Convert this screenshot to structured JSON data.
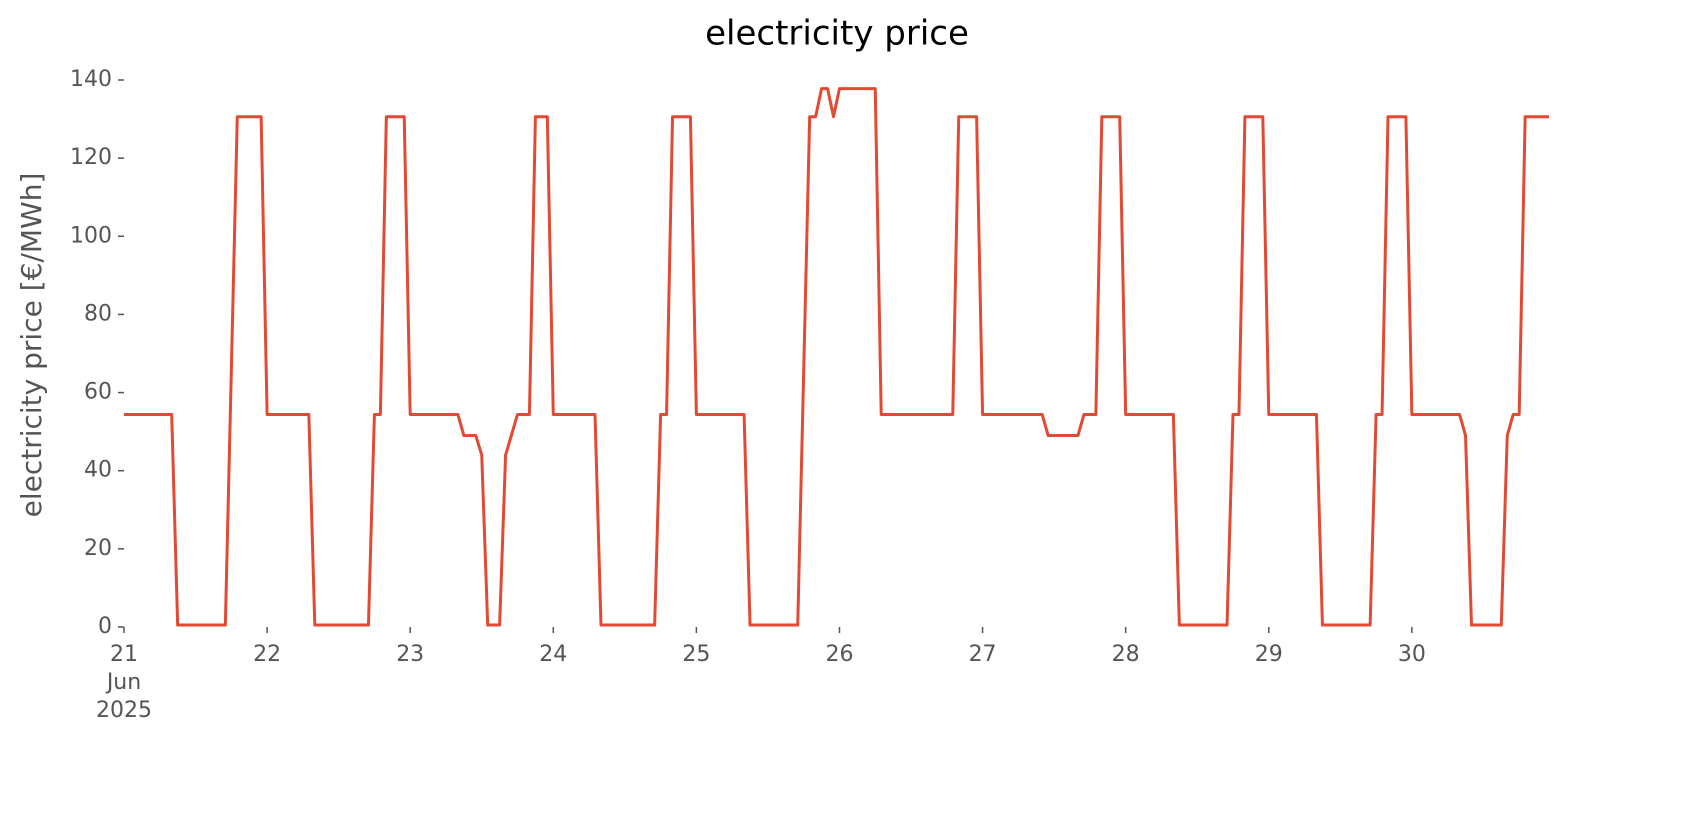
{
  "chart_data": {
    "type": "line",
    "title": "electricity price",
    "ylabel": "electricity price [€/MWh]",
    "xlim": [
      "2025-06-21 00:00",
      "2025-06-30 23:00"
    ],
    "xticks": [
      {
        "value": "2025-06-21 00:00",
        "label": "21\nJun\n2025"
      },
      {
        "value": "2025-06-22 00:00",
        "label": "22"
      },
      {
        "value": "2025-06-23 00:00",
        "label": "23"
      },
      {
        "value": "2025-06-24 00:00",
        "label": "24"
      },
      {
        "value": "2025-06-25 00:00",
        "label": "25"
      },
      {
        "value": "2025-06-26 00:00",
        "label": "26"
      },
      {
        "value": "2025-06-27 00:00",
        "label": "27"
      },
      {
        "value": "2025-06-28 00:00",
        "label": "28"
      },
      {
        "value": "2025-06-29 00:00",
        "label": "29"
      },
      {
        "value": "2025-06-30 00:00",
        "label": "30"
      }
    ],
    "ylim": [
      0,
      140
    ],
    "yticks": [
      0,
      20,
      40,
      60,
      80,
      100,
      120,
      140
    ],
    "grid": false,
    "x": [
      "2025-06-21 00:00",
      "2025-06-21 08:00",
      "2025-06-21 09:00",
      "2025-06-21 17:00",
      "2025-06-21 19:00",
      "2025-06-21 23:00",
      "2025-06-22 00:00",
      "2025-06-22 07:00",
      "2025-06-22 08:00",
      "2025-06-22 17:00",
      "2025-06-22 18:00",
      "2025-06-22 19:00",
      "2025-06-22 20:00",
      "2025-06-22 23:00",
      "2025-06-23 00:00",
      "2025-06-23 08:00",
      "2025-06-23 09:00",
      "2025-06-23 11:00",
      "2025-06-23 12:00",
      "2025-06-23 13:00",
      "2025-06-23 15:00",
      "2025-06-23 16:00",
      "2025-06-23 18:00",
      "2025-06-23 20:00",
      "2025-06-23 21:00",
      "2025-06-23 23:00",
      "2025-06-24 00:00",
      "2025-06-24 07:00",
      "2025-06-24 08:00",
      "2025-06-24 17:00",
      "2025-06-24 18:00",
      "2025-06-24 19:00",
      "2025-06-24 20:00",
      "2025-06-24 23:00",
      "2025-06-25 00:00",
      "2025-06-25 08:00",
      "2025-06-25 09:00",
      "2025-06-25 17:00",
      "2025-06-25 19:00",
      "2025-06-25 20:00",
      "2025-06-25 21:00",
      "2025-06-25 22:00",
      "2025-06-25 23:00",
      "2025-06-26 00:00",
      "2025-06-26 06:00",
      "2025-06-26 07:00",
      "2025-06-26 19:00",
      "2025-06-26 20:00",
      "2025-06-26 23:00",
      "2025-06-27 00:00",
      "2025-06-27 10:00",
      "2025-06-27 11:00",
      "2025-06-27 16:00",
      "2025-06-27 17:00",
      "2025-06-27 19:00",
      "2025-06-27 20:00",
      "2025-06-27 23:00",
      "2025-06-28 00:00",
      "2025-06-28 08:00",
      "2025-06-28 09:00",
      "2025-06-28 17:00",
      "2025-06-28 18:00",
      "2025-06-28 19:00",
      "2025-06-28 20:00",
      "2025-06-28 23:00",
      "2025-06-29 00:00",
      "2025-06-29 08:00",
      "2025-06-29 09:00",
      "2025-06-29 17:00",
      "2025-06-29 18:00",
      "2025-06-29 19:00",
      "2025-06-29 20:00",
      "2025-06-29 23:00",
      "2025-06-30 00:00",
      "2025-06-30 08:00",
      "2025-06-30 09:00",
      "2025-06-30 10:00",
      "2025-06-30 15:00",
      "2025-06-30 16:00",
      "2025-06-30 17:00",
      "2025-06-30 18:00",
      "2025-06-30 19:00",
      "2025-06-30 23:00"
    ],
    "series": [
      {
        "name": "electricity price",
        "color": "#e24a33",
        "values": [
          54.4,
          54.4,
          0.5,
          0.5,
          130.6,
          130.6,
          54.4,
          54.4,
          0.5,
          0.5,
          54.4,
          54.4,
          130.6,
          130.6,
          54.4,
          54.4,
          49,
          49,
          44,
          0.5,
          0.5,
          44,
          54.4,
          54.4,
          130.6,
          130.6,
          54.4,
          54.4,
          0.5,
          0.5,
          54.4,
          54.4,
          130.6,
          130.6,
          54.4,
          54.4,
          0.5,
          0.5,
          130.6,
          130.6,
          137.8,
          137.8,
          130.6,
          137.8,
          137.8,
          54.4,
          54.4,
          130.6,
          130.6,
          54.4,
          54.4,
          49,
          49,
          54.4,
          54.4,
          130.6,
          130.6,
          54.4,
          54.4,
          0.5,
          0.5,
          54.4,
          54.4,
          130.6,
          130.6,
          54.4,
          54.4,
          0.5,
          0.5,
          54.4,
          54.4,
          130.6,
          130.6,
          54.4,
          54.4,
          49,
          0.5,
          0.5,
          49,
          54.4,
          54.4,
          130.6,
          130.6
        ]
      }
    ]
  }
}
